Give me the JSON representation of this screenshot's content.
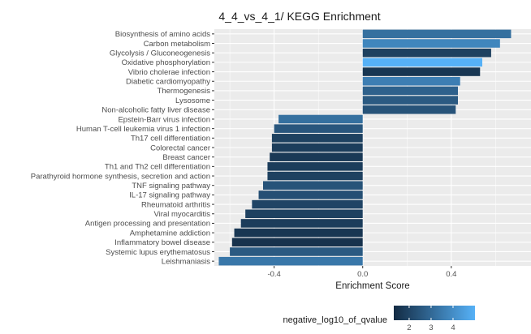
{
  "chart_data": {
    "type": "bar",
    "orientation": "horizontal",
    "title": "4_4_vs_4_1/ KEGG Enrichment",
    "xlabel": "Enrichment Score",
    "ylabel": "",
    "xlim": [
      -0.67,
      0.76
    ],
    "x_ticks": [
      -0.4,
      0.0,
      0.4
    ],
    "x_tick_labels": [
      "-0.4",
      "0.0",
      "0.4"
    ],
    "grid": true,
    "categories": [
      "Biosynthesis of amino acids",
      "Carbon metabolism",
      "Glycolysis / Gluconeogenesis",
      "Oxidative phosphorylation",
      "Vibrio cholerae infection",
      "Diabetic cardiomyopathy",
      "Thermogenesis",
      "Lysosome",
      "Non-alcoholic fatty liver disease",
      "Epstein-Barr virus infection",
      "Human T-cell leukemia virus 1 infection",
      "Th17 cell differentiation",
      "Colorectal cancer",
      "Breast cancer",
      "Th1 and Th2 cell differentiation",
      "Parathyroid hormone synthesis, secretion and action",
      "TNF signaling pathway",
      "IL-17 signaling pathway",
      "Rheumatoid arthritis",
      "Viral myocarditis",
      "Antigen processing and presentation",
      "Amphetamine addiction",
      "Inflammatory bowel disease",
      "Systemic lupus erythematosus",
      "Leishmaniasis"
    ],
    "values": [
      0.67,
      0.62,
      0.58,
      0.54,
      0.53,
      0.44,
      0.43,
      0.43,
      0.42,
      -0.38,
      -0.4,
      -0.41,
      -0.41,
      -0.42,
      -0.43,
      -0.43,
      -0.45,
      -0.47,
      -0.5,
      -0.53,
      -0.55,
      -0.58,
      -0.59,
      -0.6,
      -0.65
    ],
    "color_values": [
      3.2,
      3.8,
      1.9,
      5.0,
      1.6,
      3.6,
      2.8,
      2.6,
      2.4,
      3.2,
      2.5,
      1.9,
      1.8,
      1.7,
      1.8,
      1.9,
      2.4,
      2.3,
      2.0,
      1.9,
      1.8,
      1.6,
      1.5,
      2.6,
      3.4
    ],
    "legend": {
      "title": "negative_log10_of_qvalue",
      "placement": "bottom",
      "range": [
        1.3,
        5.0
      ],
      "ticks": [
        2,
        3,
        4
      ],
      "tick_labels": [
        "2",
        "3",
        "4"
      ],
      "color_low": "#132b43",
      "color_high": "#56b1f7"
    },
    "panel_background": "#ebebeb",
    "grid_color": "#ffffff"
  }
}
